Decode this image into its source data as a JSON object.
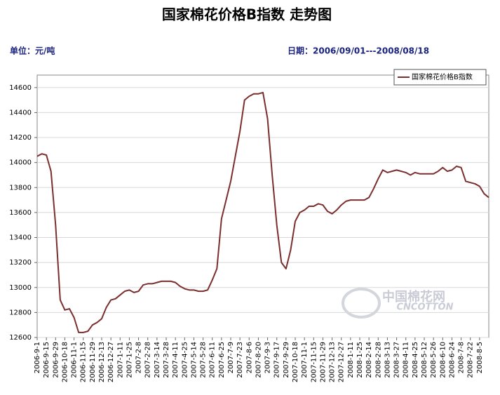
{
  "chart_data": {
    "type": "line",
    "title": "国家棉花价格B指数  走势图",
    "unit_label": "单位：元/吨",
    "date_label": "日期：2006/09/01---2008/08/18",
    "watermark": {
      "cn": "中国棉花网",
      "en": "CNCOTTON"
    },
    "categories": [
      "2006-9-1",
      null,
      "2006-9-15",
      null,
      "2006-9-29",
      null,
      "2006-10-18",
      null,
      "2006-11-1",
      null,
      "2006-11-15",
      null,
      "2006-11-29",
      null,
      "2006-12-13",
      null,
      "2006-12-27",
      null,
      "2007-1-11",
      null,
      "2007-1-25",
      null,
      "2007-2-8",
      null,
      "2007-2-28",
      null,
      "2007-3-14",
      null,
      "2007-3-28",
      null,
      "2007-4-11",
      null,
      "2007-4-25",
      null,
      "2007-5-14",
      null,
      "2007-5-28",
      null,
      "2007-6-11",
      null,
      "2007-6-25",
      null,
      "2007-7-9",
      null,
      "2007-7-23",
      null,
      "2007-8-6",
      null,
      "2007-8-20",
      null,
      "2007-9-3",
      null,
      "2007-9-17",
      null,
      "2007-9-29",
      null,
      "2007-10-18",
      null,
      "2007-11-1",
      null,
      "2007-11-15",
      null,
      "2007-11-29",
      null,
      "2007-12-13",
      null,
      "2007-12-27",
      null,
      "2008-1-11",
      null,
      "2008-1-25",
      null,
      "2008-2-14",
      null,
      "2008-2-28",
      null,
      "2008-3-13",
      null,
      "2008-3-27",
      null,
      "2008-4-11",
      null,
      "2008-4-25",
      null,
      "2008-5-12",
      null,
      "2008-5-26",
      null,
      "2008-6-10",
      null,
      "2008-6-24",
      null,
      "2008-7-8",
      null,
      "2008-7-22",
      null,
      "2008-8-5",
      null,
      null
    ],
    "series": [
      {
        "name": "国家棉花价格B指数",
        "color": "#7b2e2e",
        "values": [
          14050,
          14070,
          14060,
          13930,
          13500,
          12900,
          12820,
          12830,
          12760,
          12640,
          12640,
          12650,
          12700,
          12720,
          12750,
          12840,
          12900,
          12910,
          12940,
          12970,
          12980,
          12960,
          12970,
          13020,
          13030,
          13030,
          13040,
          13050,
          13050,
          13050,
          13040,
          13010,
          12990,
          12980,
          12980,
          12970,
          12970,
          12980,
          13060,
          13150,
          13550,
          13700,
          13850,
          14050,
          14250,
          14500,
          14530,
          14550,
          14550,
          14560,
          14350,
          13900,
          13500,
          13200,
          13150,
          13300,
          13530,
          13600,
          13620,
          13650,
          13650,
          13670,
          13660,
          13610,
          13590,
          13620,
          13660,
          13690,
          13700,
          13700,
          13700,
          13700,
          13720,
          13790,
          13870,
          13940,
          13920,
          13930,
          13940,
          13930,
          13920,
          13900,
          13920,
          13910,
          13910,
          13910,
          13910,
          13930,
          13960,
          13930,
          13940,
          13970,
          13960,
          13850,
          13840,
          13830,
          13810,
          13750,
          13720
        ]
      }
    ],
    "ylim": [
      12600,
      14700
    ],
    "yticks": [
      12600,
      12800,
      13000,
      13200,
      13400,
      13600,
      13800,
      14000,
      14200,
      14400,
      14600
    ],
    "grid": true,
    "legend": "top-right"
  }
}
